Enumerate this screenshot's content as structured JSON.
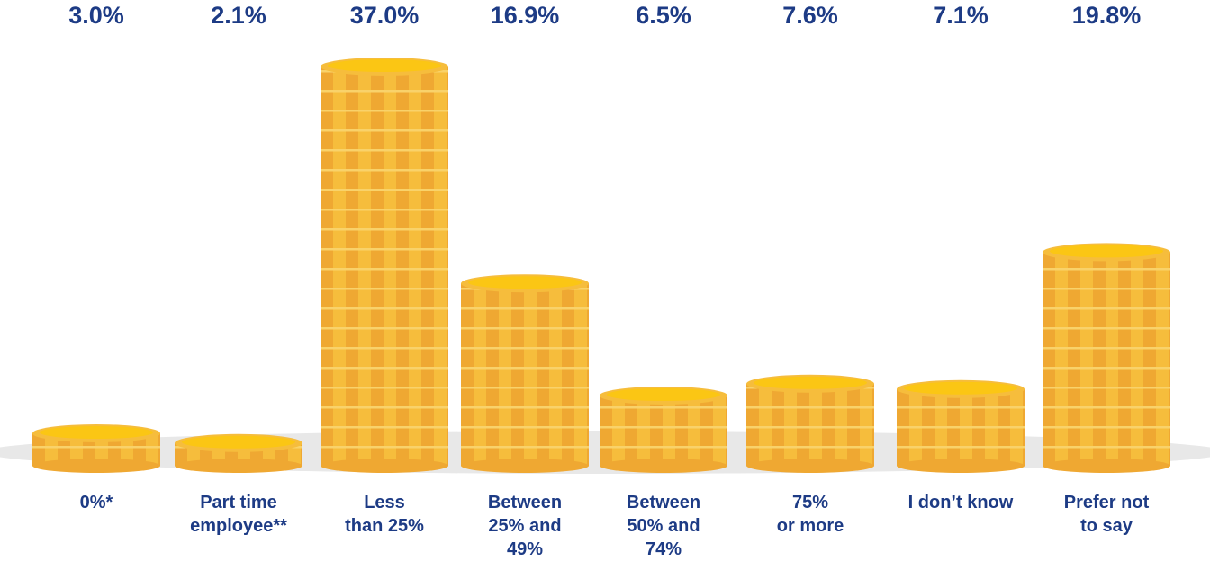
{
  "chart_data": {
    "type": "coin-stack",
    "categories": [
      "0%*",
      "Part time\nemployee**",
      "Less\nthan 25%",
      "Between\n25% and\n49%",
      "Between\n50% and\n74%",
      "75%\nor more",
      "I don’t know",
      "Prefer not\nto say"
    ],
    "values": [
      3.0,
      2.1,
      37.0,
      16.9,
      6.5,
      7.6,
      7.1,
      19.8
    ],
    "value_labels": [
      "3.0%",
      "2.1%",
      "37.0%",
      "16.9%",
      "6.5%",
      "7.6%",
      "7.1%",
      "19.8%"
    ],
    "color": "#efa832"
  }
}
